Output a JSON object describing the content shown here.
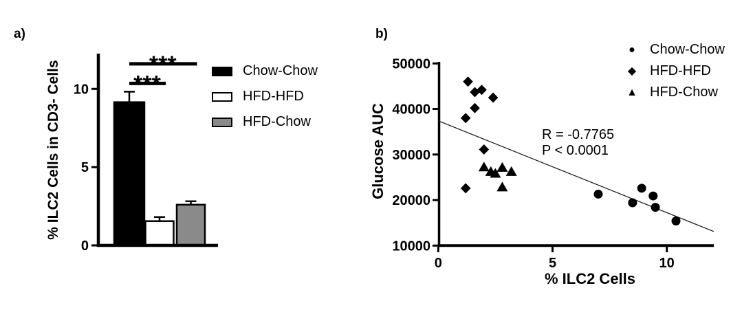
{
  "chart_data": [
    {
      "type": "bar",
      "panel_label": "a)",
      "ylabel": "% ILC2 Cells in CD3- Cells",
      "xlabel": "",
      "categories": [
        "Chow-Chow",
        "HFD-HFD",
        "HFD-Chow"
      ],
      "values": [
        9.15,
        1.55,
        2.6
      ],
      "errors": [
        0.67,
        0.26,
        0.22
      ],
      "bar_colors": [
        "#000000",
        "#ffffff",
        "#8a8a8a"
      ],
      "bar_edge_color": "#000000",
      "yticks": [
        0,
        5,
        10
      ],
      "ylim": [
        0,
        12.2
      ],
      "grid": "off",
      "significance": [
        {
          "bars": [
            0,
            1
          ],
          "label": "***",
          "y": 10.35
        },
        {
          "bars": [
            0,
            2
          ],
          "label": "***",
          "y": 11.6
        }
      ],
      "legend": [
        {
          "label": "Chow-Chow",
          "swatch_color": "#000000"
        },
        {
          "label": "HFD-HFD",
          "swatch_color": "#ffffff"
        },
        {
          "label": "HFD-Chow",
          "swatch_color": "#8a8a8a"
        }
      ],
      "legend_position": "right"
    },
    {
      "type": "scatter",
      "panel_label": "b)",
      "xlabel": "% ILC2 Cells",
      "ylabel": "Glucose AUC",
      "xticks": [
        0,
        5,
        10
      ],
      "xlim": [
        0,
        12.1
      ],
      "yticks": [
        10000,
        20000,
        30000,
        40000,
        50000
      ],
      "ylim": [
        10000,
        50000
      ],
      "grid": "off",
      "marker_color": "#000000",
      "annotation": {
        "line1": "R = -0.7765",
        "line2": "P < 0.0001"
      },
      "regression_line": {
        "x": [
          0,
          12.05
        ],
        "y": [
          37400,
          13100
        ]
      },
      "series": [
        {
          "name": "Chow-Chow",
          "marker": "circle",
          "marker_glyph": "●",
          "points": [
            [
              7.0,
              21300
            ],
            [
              8.9,
              22600
            ],
            [
              9.4,
              20900
            ],
            [
              8.5,
              19400
            ],
            [
              9.5,
              18400
            ],
            [
              10.4,
              15400
            ]
          ]
        },
        {
          "name": "HFD-HFD",
          "marker": "diamond",
          "marker_glyph": "◆",
          "points": [
            [
              1.3,
              46000
            ],
            [
              1.6,
              43700
            ],
            [
              1.9,
              44200
            ],
            [
              2.4,
              42500
            ],
            [
              1.6,
              40200
            ],
            [
              1.2,
              38000
            ],
            [
              2.0,
              31100
            ],
            [
              1.2,
              22600
            ]
          ]
        },
        {
          "name": "HFD-Chow",
          "marker": "triangle",
          "marker_glyph": "▲",
          "points": [
            [
              2.0,
              27300
            ],
            [
              2.3,
              26300
            ],
            [
              2.5,
              25900
            ],
            [
              2.8,
              27200
            ],
            [
              3.2,
              26300
            ],
            [
              2.8,
              22900
            ]
          ]
        }
      ],
      "legend_position": "top-right"
    }
  ]
}
